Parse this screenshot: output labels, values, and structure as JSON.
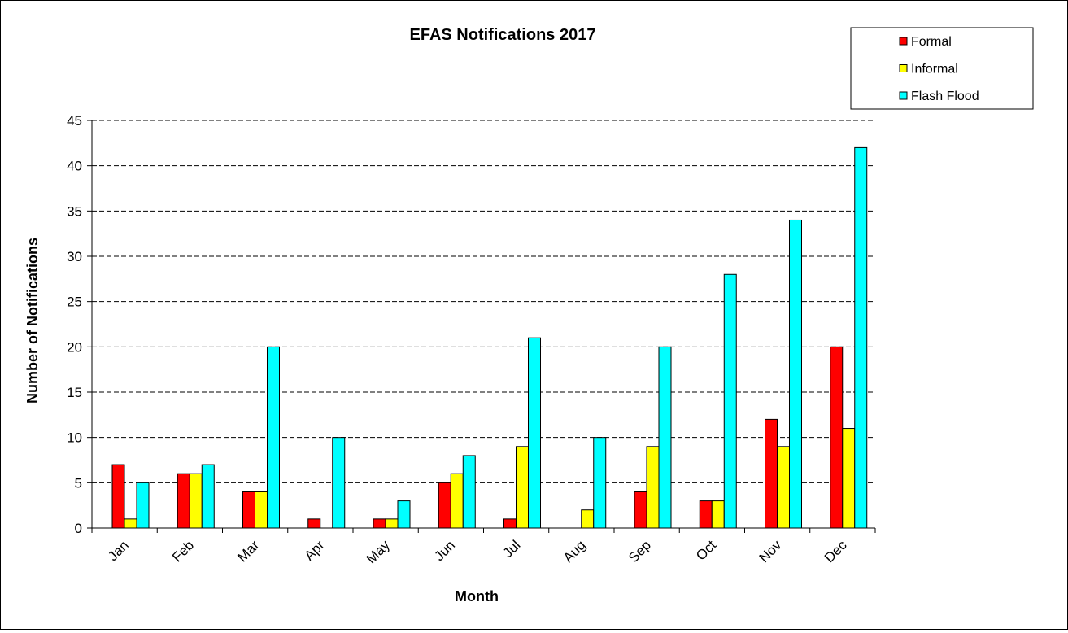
{
  "chart_data": {
    "type": "bar",
    "title": "EFAS Notifications 2017",
    "xlabel": "Month",
    "ylabel": "Number of Notifications",
    "ylim": [
      0,
      45
    ],
    "yticks": [
      0,
      5,
      10,
      15,
      20,
      25,
      30,
      35,
      40,
      45
    ],
    "grid": "horizontal dashed",
    "legend_position": "top-right",
    "categories": [
      "Jan",
      "Feb",
      "Mar",
      "Apr",
      "May",
      "Jun",
      "Jul",
      "Aug",
      "Sep",
      "Oct",
      "Nov",
      "Dec"
    ],
    "series": [
      {
        "name": "Formal",
        "color": "#FF0000",
        "values": [
          7,
          6,
          4,
          1,
          1,
          5,
          1,
          0,
          4,
          3,
          12,
          20
        ]
      },
      {
        "name": "Informal",
        "color": "#FFFF00",
        "values": [
          1,
          6,
          4,
          0,
          1,
          6,
          9,
          2,
          9,
          3,
          9,
          11
        ]
      },
      {
        "name": "Flash Flood",
        "color": "#00FFFF",
        "values": [
          5,
          7,
          20,
          10,
          3,
          8,
          21,
          10,
          20,
          28,
          34,
          42
        ]
      }
    ]
  }
}
